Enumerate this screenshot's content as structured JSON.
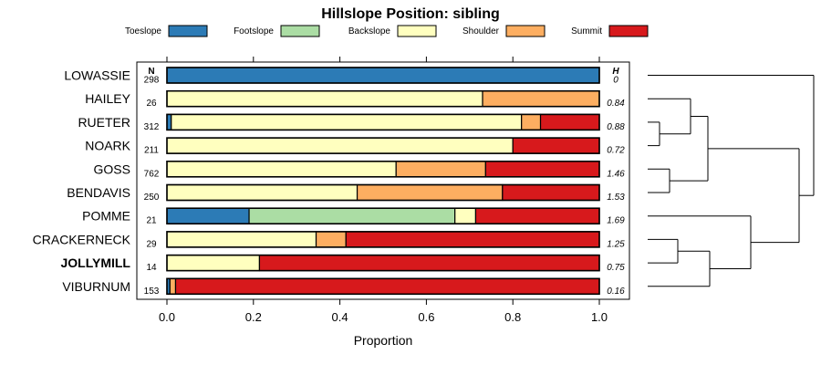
{
  "chart_data": {
    "type": "bar",
    "orientation": "horizontal",
    "stacked": true,
    "title": "Hillslope Position: sibling",
    "xlabel": "Proportion",
    "xlim": [
      0,
      1
    ],
    "xticks": [
      "0.0",
      "0.2",
      "0.4",
      "0.6",
      "0.8",
      "1.0"
    ],
    "n_header": "N",
    "h_header": "H",
    "legend_position": "top",
    "highlighted_category": "JOLLYMILL",
    "series": [
      {
        "name": "Toeslope",
        "color": "#2C7BB6"
      },
      {
        "name": "Footslope",
        "color": "#ABDDA4"
      },
      {
        "name": "Backslope",
        "color": "#FFFFBF"
      },
      {
        "name": "Shoulder",
        "color": "#FDAE61"
      },
      {
        "name": "Summit",
        "color": "#D7191C"
      }
    ],
    "categories": [
      "LOWASSIE",
      "HAILEY",
      "RUETER",
      "NOARK",
      "GOSS",
      "BENDAVIS",
      "POMME",
      "CRACKERNECK",
      "JOLLYMILL",
      "VIBURNUM"
    ],
    "rows": [
      {
        "name": "LOWASSIE",
        "n": "298",
        "h": "0",
        "values": [
          1.0,
          0,
          0,
          0,
          0
        ]
      },
      {
        "name": "HAILEY",
        "n": "26",
        "h": "0.84",
        "values": [
          0,
          0,
          0.73,
          0.27,
          0
        ]
      },
      {
        "name": "RUETER",
        "n": "312",
        "h": "0.88",
        "values": [
          0.01,
          0,
          0.81,
          0.044,
          0.136
        ]
      },
      {
        "name": "NOARK",
        "n": "211",
        "h": "0.72",
        "values": [
          0,
          0,
          0.8,
          0,
          0.2
        ]
      },
      {
        "name": "GOSS",
        "n": "762",
        "h": "1.46",
        "values": [
          0,
          0,
          0.53,
          0.207,
          0.263
        ]
      },
      {
        "name": "BENDAVIS",
        "n": "250",
        "h": "1.53",
        "values": [
          0,
          0,
          0.44,
          0.336,
          0.224
        ]
      },
      {
        "name": "POMME",
        "n": "21",
        "h": "1.69",
        "values": [
          0.19,
          0.476,
          0.048,
          0,
          0.286
        ]
      },
      {
        "name": "CRACKERNECK",
        "n": "29",
        "h": "1.25",
        "values": [
          0,
          0,
          0.345,
          0.069,
          0.586
        ]
      },
      {
        "name": "JOLLYMILL",
        "n": "14",
        "h": "0.75",
        "values": [
          0,
          0,
          0.214,
          0,
          0.786
        ]
      },
      {
        "name": "VIBURNUM",
        "n": "153",
        "h": "0.16",
        "values": [
          0.007,
          0,
          0,
          0.013,
          0.98
        ]
      }
    ],
    "dendrogram": "LOWASSIE joins last; clusters: ((HAILEY,(RUETER,NOARK)),(GOSS,BENDAVIS)) and (POMME,((CRACKERNECK,JOLLYMILL),VIBURNUM))"
  }
}
